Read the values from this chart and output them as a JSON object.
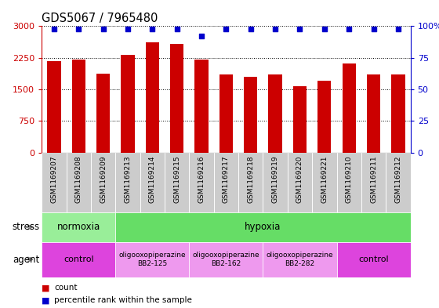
{
  "title": "GDS5067 / 7965480",
  "samples": [
    "GSM1169207",
    "GSM1169208",
    "GSM1169209",
    "GSM1169213",
    "GSM1169214",
    "GSM1169215",
    "GSM1169216",
    "GSM1169217",
    "GSM1169218",
    "GSM1169219",
    "GSM1169220",
    "GSM1169221",
    "GSM1169210",
    "GSM1169211",
    "GSM1169212"
  ],
  "counts": [
    2175,
    2205,
    1870,
    2310,
    2620,
    2580,
    2210,
    1860,
    1800,
    1855,
    1565,
    1695,
    2115,
    1850,
    1850
  ],
  "percentiles": [
    98,
    98,
    98,
    98,
    98,
    98,
    92,
    98,
    98,
    98,
    98,
    98,
    98,
    98,
    98
  ],
  "ylim_left": [
    0,
    3000
  ],
  "yticks_left": [
    0,
    750,
    1500,
    2250,
    3000
  ],
  "ytick_labels_left": [
    "0",
    "750",
    "1500",
    "2250",
    "3000"
  ],
  "ylim_right": [
    0,
    100
  ],
  "yticks_right": [
    0,
    25,
    50,
    75,
    100
  ],
  "ytick_labels_right": [
    "0",
    "25",
    "50",
    "75",
    "100%"
  ],
  "bar_color": "#cc0000",
  "dot_color": "#0000cc",
  "bar_width": 0.55,
  "grid_color": "#000000",
  "stress_labels": [
    {
      "text": "normoxia",
      "start": 0,
      "end": 3,
      "color": "#99ee99"
    },
    {
      "text": "hypoxia",
      "start": 3,
      "end": 15,
      "color": "#66dd66"
    }
  ],
  "agent_labels": [
    {
      "text": "control",
      "start": 0,
      "end": 3,
      "color": "#dd44dd",
      "fontsize": 8
    },
    {
      "text": "oligooxopiperazine\nBB2-125",
      "start": 3,
      "end": 6,
      "color": "#ee99ee",
      "fontsize": 6.5
    },
    {
      "text": "oligooxopiperazine\nBB2-162",
      "start": 6,
      "end": 9,
      "color": "#ee99ee",
      "fontsize": 6.5
    },
    {
      "text": "oligooxopiperazine\nBB2-282",
      "start": 9,
      "end": 12,
      "color": "#ee99ee",
      "fontsize": 6.5
    },
    {
      "text": "control",
      "start": 12,
      "end": 15,
      "color": "#dd44dd",
      "fontsize": 8
    }
  ],
  "row_label_stress": "stress",
  "row_label_agent": "agent",
  "legend_count_color": "#cc0000",
  "legend_pct_color": "#0000cc",
  "legend_count_text": "count",
  "legend_pct_text": "percentile rank within the sample",
  "bg_color": "#ffffff",
  "tick_label_bg": "#cccccc",
  "sample_label_fontsize": 6.5
}
